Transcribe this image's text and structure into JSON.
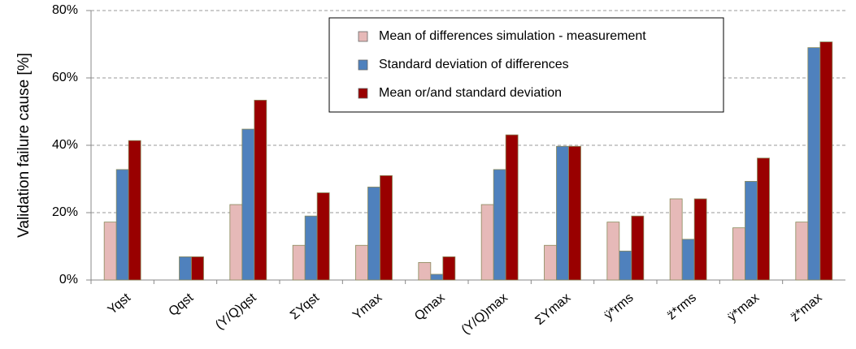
{
  "chart_data": {
    "type": "bar",
    "y_label": "Validation failure cause  [%]",
    "categories": [
      "Yqst",
      "Qqst",
      "(Y/Q)qst",
      "ΣYqst",
      "Ymax",
      "Qmax",
      "(Y/Q)max",
      "ΣYmax",
      "ÿ*rms",
      "z̈*rms",
      "ÿ*max",
      "z̈*max"
    ],
    "series": [
      {
        "name": "Mean of differences simulation - measurement",
        "color": "#e6b9b8",
        "values": [
          17.2,
          0,
          22.4,
          10.3,
          10.3,
          5.2,
          22.4,
          10.3,
          17.2,
          24.1,
          15.5,
          17.2
        ]
      },
      {
        "name": "Standard deviation of differences",
        "color": "#4f81bd",
        "values": [
          32.8,
          6.9,
          44.8,
          19.0,
          27.6,
          1.7,
          32.8,
          39.7,
          8.6,
          12.1,
          29.3,
          69.0
        ]
      },
      {
        "name": "Mean or/and standard deviation",
        "color": "#990000",
        "values": [
          41.4,
          6.9,
          53.4,
          25.9,
          31.0,
          6.9,
          43.1,
          39.7,
          19.0,
          24.1,
          36.2,
          70.7
        ]
      }
    ],
    "ylim": [
      0,
      80
    ],
    "yticks": [
      {
        "value": 0,
        "label": "0%"
      },
      {
        "value": 20,
        "label": "20%"
      },
      {
        "value": 40,
        "label": "40%"
      },
      {
        "value": 60,
        "label": "60%"
      },
      {
        "value": 80,
        "label": "80%"
      }
    ],
    "grid": true,
    "legend": "top"
  }
}
